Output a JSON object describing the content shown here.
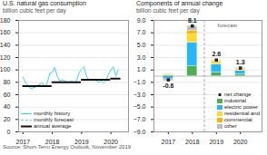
{
  "chart_data": [
    {
      "type": "line",
      "title": "U.S. natural gas consumption",
      "subtitle": "billion cubic feet per day",
      "series": [
        {
          "name": "monthly history",
          "color": "#3dd4e8",
          "line_style": "solid",
          "x": [
            2017.0,
            2017.083,
            2017.167,
            2017.25,
            2017.333,
            2017.417,
            2017.5,
            2017.583,
            2017.667,
            2017.75,
            2017.833,
            2017.917,
            2018.0,
            2018.083,
            2018.167,
            2018.25,
            2018.333,
            2018.417,
            2018.5,
            2018.583,
            2018.667,
            2018.75,
            2018.833,
            2018.917,
            2019.0,
            2019.083,
            2019.167,
            2019.25,
            2019.333,
            2019.417,
            2019.5,
            2019.583,
            2019.667,
            2019.75,
            2019.833,
            2019.917,
            2020.0,
            2020.083,
            2020.167,
            2020.25
          ],
          "values": [
            88,
            80,
            75,
            70,
            71,
            72,
            75,
            77,
            79,
            73,
            80,
            95,
            96,
            104,
            90,
            82,
            84,
            83,
            80,
            80,
            82,
            79,
            83,
            96,
            101,
            105,
            90,
            83,
            84,
            84,
            83,
            80,
            82,
            79,
            83,
            93,
            100,
            105,
            90,
            100
          ]
        },
        {
          "name": "monthly forecast",
          "color": "#3dd4e8",
          "line_style": "dashed",
          "x": [],
          "values": []
        },
        {
          "name": "annual average",
          "color": "#111111",
          "line_style": "solid",
          "segments": [
            {
              "x": [
                2017.0,
                2017.95
              ],
              "values": [
                74,
                74
              ]
            },
            {
              "x": [
                2018.0,
                2018.95
              ],
              "values": [
                80,
                80
              ]
            },
            {
              "x": [
                2019.0,
                2019.95
              ],
              "values": [
                84,
                84
              ]
            },
            {
              "x": [
                2020.0,
                2020.3
              ],
              "values": [
                86,
                86
              ]
            }
          ]
        }
      ],
      "xlim": [
        2016.85,
        2020.6
      ],
      "xticks": [
        2017,
        2018,
        2019,
        2020
      ],
      "ylim": [
        0,
        180
      ],
      "yticks": [
        0,
        20,
        40,
        60,
        80,
        100,
        120,
        140,
        160,
        180
      ],
      "grid": true,
      "legend": "lower left"
    },
    {
      "type": "bar",
      "title": "Components of annual change",
      "subtitle": "billion cubic feet per day",
      "source": "Source: Short-Term Energy Outlook, November 2019",
      "stacked": true,
      "x": [
        2017,
        2018,
        2019,
        2020
      ],
      "series": [
        {
          "name": "net change",
          "type": "scatter",
          "marker": "square",
          "color": "#212121",
          "data_labels": true,
          "values": [
            -0.6,
            8.1,
            2.6,
            1.3
          ]
        },
        {
          "name": "industrial",
          "type": "bar",
          "color": "#4caf50",
          "values": [
            0.1,
            1.6,
            0.6,
            0.3
          ]
        },
        {
          "name": "electric power",
          "type": "bar",
          "color": "#29b6f6",
          "values": [
            -0.5,
            3.8,
            1.3,
            0.55
          ]
        },
        {
          "name": "residential and",
          "type": "bar",
          "color": "#fdd835",
          "values": [
            0.15,
            1.4,
            0.5,
            0.25
          ]
        },
        {
          "name": "commercial",
          "type": "bar",
          "color": "#ffb300",
          "values": [
            0.05,
            0.5,
            0.1,
            0.05
          ]
        },
        {
          "name": "other",
          "type": "bar",
          "color": "#bdbdbd",
          "values": [
            -0.3,
            0.8,
            0.1,
            0.15
          ]
        }
      ],
      "annotations": [
        {
          "type": "vline",
          "x": 2018.5
        },
        {
          "type": "hline",
          "y": 0
        },
        {
          "type": "text",
          "text": "forecast",
          "x": 2019.05,
          "y": 8.2
        }
      ],
      "xlim": [
        2016.4,
        2020.9
      ],
      "xticks": [
        2017,
        2018,
        2019,
        2020
      ],
      "ylim": [
        -9.0,
        9.0
      ],
      "yticks": [
        {
          "value": -9.0,
          "label": "−9.0"
        },
        {
          "value": -7.0,
          "label": "−7.0"
        },
        {
          "value": -5.0,
          "label": "−5.0"
        },
        {
          "value": -3.0,
          "label": "−3.0"
        },
        {
          "value": -1.0,
          "label": "−1.0"
        },
        {
          "value": 1.0,
          "label": "1.0"
        },
        {
          "value": 3.0,
          "label": "3.0"
        },
        {
          "value": 5.0,
          "label": "5.0"
        },
        {
          "value": 7.0,
          "label": "7.0"
        },
        {
          "value": 9.0,
          "label": "9.0"
        }
      ],
      "grid": true,
      "legend": "lower right"
    }
  ]
}
